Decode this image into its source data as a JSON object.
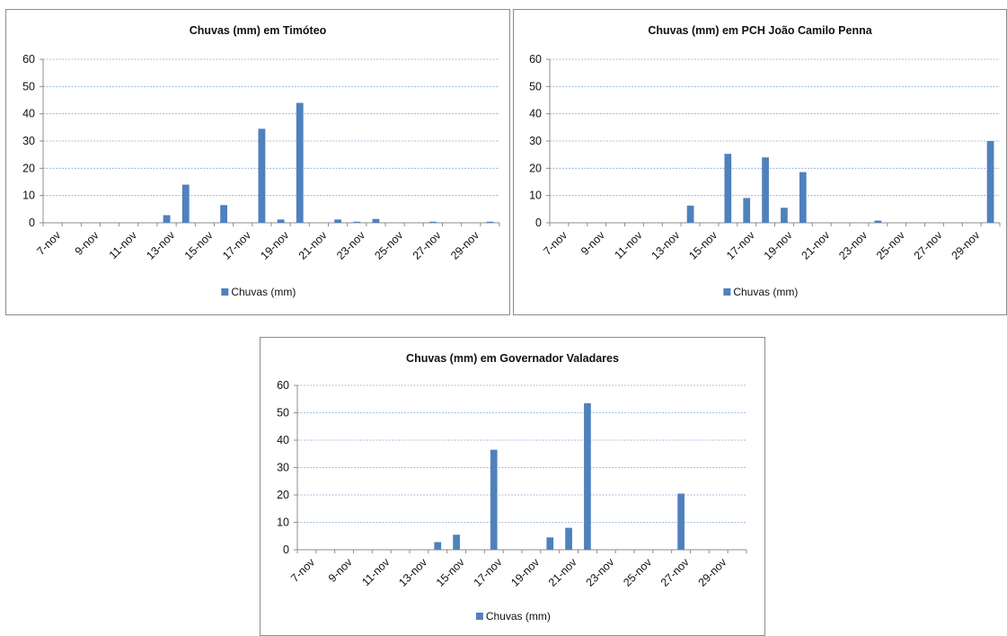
{
  "colors": {
    "bar": "#4f81bd",
    "grid": "#86a9d6",
    "axis": "#8c8c8c",
    "border": "#8c8c8c"
  },
  "chart_data": [
    {
      "type": "bar",
      "title": "Chuvas (mm) em Timóteo",
      "categories": [
        "7-nov",
        "8-nov",
        "9-nov",
        "10-nov",
        "11-nov",
        "12-nov",
        "13-nov",
        "14-nov",
        "15-nov",
        "16-nov",
        "17-nov",
        "18-nov",
        "19-nov",
        "20-nov",
        "21-nov",
        "22-nov",
        "23-nov",
        "24-nov",
        "25-nov",
        "26-nov",
        "27-nov",
        "28-nov",
        "29-nov",
        "30-nov"
      ],
      "tick_labels": [
        "7-nov",
        "9-nov",
        "11-nov",
        "13-nov",
        "15-nov",
        "17-nov",
        "19-nov",
        "21-nov",
        "23-nov",
        "25-nov",
        "27-nov",
        "29-nov"
      ],
      "series": [
        {
          "name": "Chuvas (mm)",
          "values": [
            0,
            0,
            0,
            0,
            0,
            0,
            2.8,
            14,
            0,
            6.5,
            0,
            34.5,
            1.2,
            44,
            0,
            1.2,
            0.4,
            1.4,
            0,
            0,
            0.4,
            0,
            0,
            0.4
          ]
        }
      ],
      "ylim": [
        0,
        60
      ],
      "yticks": [
        0,
        10,
        20,
        30,
        40,
        50,
        60
      ],
      "grid": true,
      "legend": "bottom"
    },
    {
      "type": "bar",
      "title": "Chuvas (mm) em PCH João Camilo Penna",
      "categories": [
        "7-nov",
        "8-nov",
        "9-nov",
        "10-nov",
        "11-nov",
        "12-nov",
        "13-nov",
        "14-nov",
        "15-nov",
        "16-nov",
        "17-nov",
        "18-nov",
        "19-nov",
        "20-nov",
        "21-nov",
        "22-nov",
        "23-nov",
        "24-nov",
        "25-nov",
        "26-nov",
        "27-nov",
        "28-nov",
        "29-nov",
        "30-nov"
      ],
      "tick_labels": [
        "7-nov",
        "9-nov",
        "11-nov",
        "13-nov",
        "15-nov",
        "17-nov",
        "19-nov",
        "21-nov",
        "23-nov",
        "25-nov",
        "27-nov",
        "29-nov"
      ],
      "series": [
        {
          "name": "Chuvas (mm)",
          "values": [
            0,
            0,
            0,
            0,
            0,
            0,
            0,
            6.3,
            0,
            25.3,
            9.1,
            24,
            5.5,
            18.6,
            0,
            0,
            0,
            0.8,
            0,
            0,
            0,
            0,
            0,
            30
          ]
        }
      ],
      "ylim": [
        0,
        60
      ],
      "yticks": [
        0,
        10,
        20,
        30,
        40,
        50,
        60
      ],
      "grid": true,
      "legend": "bottom"
    },
    {
      "type": "bar",
      "title": "Chuvas (mm) em Governador Valadares",
      "categories": [
        "7-nov",
        "8-nov",
        "9-nov",
        "10-nov",
        "11-nov",
        "12-nov",
        "13-nov",
        "14-nov",
        "15-nov",
        "16-nov",
        "17-nov",
        "18-nov",
        "19-nov",
        "20-nov",
        "21-nov",
        "22-nov",
        "23-nov",
        "24-nov",
        "25-nov",
        "26-nov",
        "27-nov",
        "28-nov",
        "29-nov",
        "30-nov"
      ],
      "tick_labels": [
        "7-nov",
        "9-nov",
        "11-nov",
        "13-nov",
        "15-nov",
        "17-nov",
        "19-nov",
        "21-nov",
        "23-nov",
        "25-nov",
        "27-nov",
        "29-nov"
      ],
      "series": [
        {
          "name": "Chuvas (mm)",
          "values": [
            0,
            0,
            0,
            0,
            0,
            0,
            0,
            2.8,
            5.5,
            0,
            36.5,
            0,
            0,
            4.5,
            8,
            53.5,
            0,
            0,
            0,
            0,
            20.5,
            0,
            0,
            0
          ]
        }
      ],
      "ylim": [
        0,
        60
      ],
      "yticks": [
        0,
        10,
        20,
        30,
        40,
        50,
        60
      ],
      "grid": true,
      "legend": "bottom"
    }
  ]
}
